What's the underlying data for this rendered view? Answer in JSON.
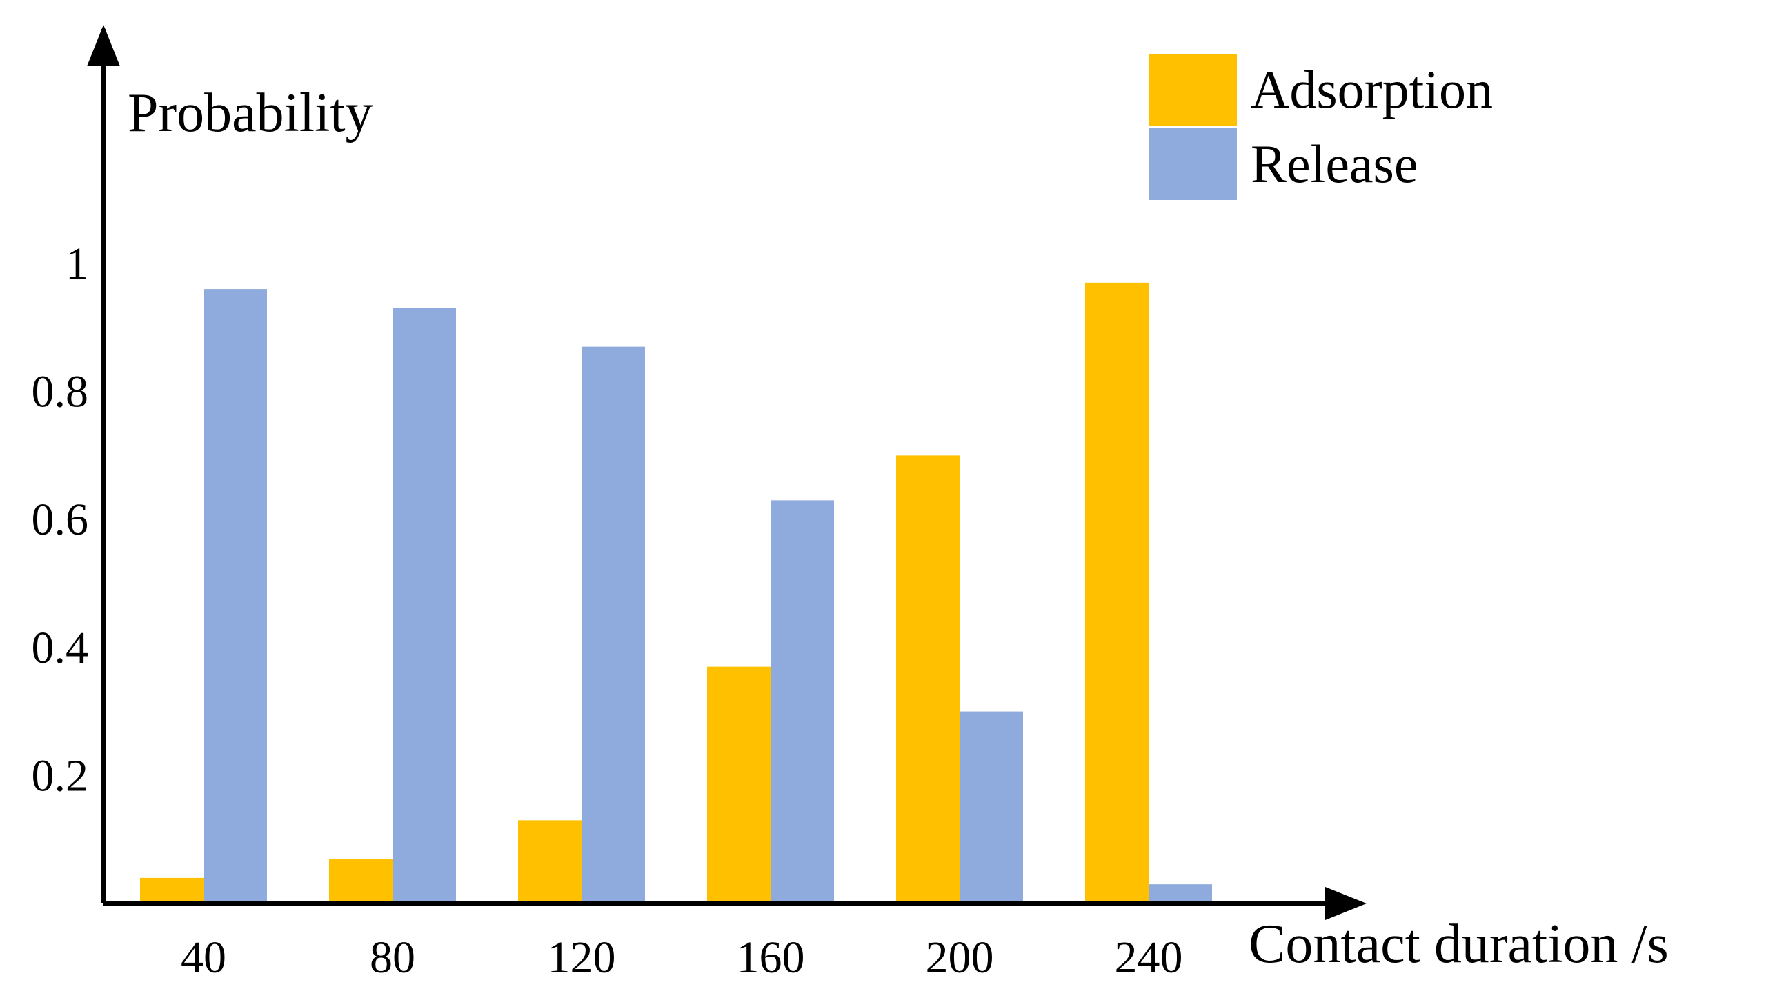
{
  "chart_data": {
    "type": "bar",
    "title": "",
    "xlabel": "Contact duration /s",
    "ylabel": "Probability",
    "categories": [
      "40",
      "80",
      "120",
      "160",
      "200",
      "240"
    ],
    "yticks": [
      "0.2",
      "0.4",
      "0.6",
      "0.8",
      "1"
    ],
    "ylim": [
      0,
      1.1
    ],
    "grid": false,
    "legend_position": "top-right",
    "series": [
      {
        "name": "Adsorption",
        "color": "#FFC000",
        "values": [
          0.04,
          0.07,
          0.13,
          0.37,
          0.7,
          0.97
        ]
      },
      {
        "name": "Release",
        "color": "#8FAADC",
        "values": [
          0.96,
          0.93,
          0.87,
          0.63,
          0.3,
          0.03
        ]
      }
    ]
  }
}
